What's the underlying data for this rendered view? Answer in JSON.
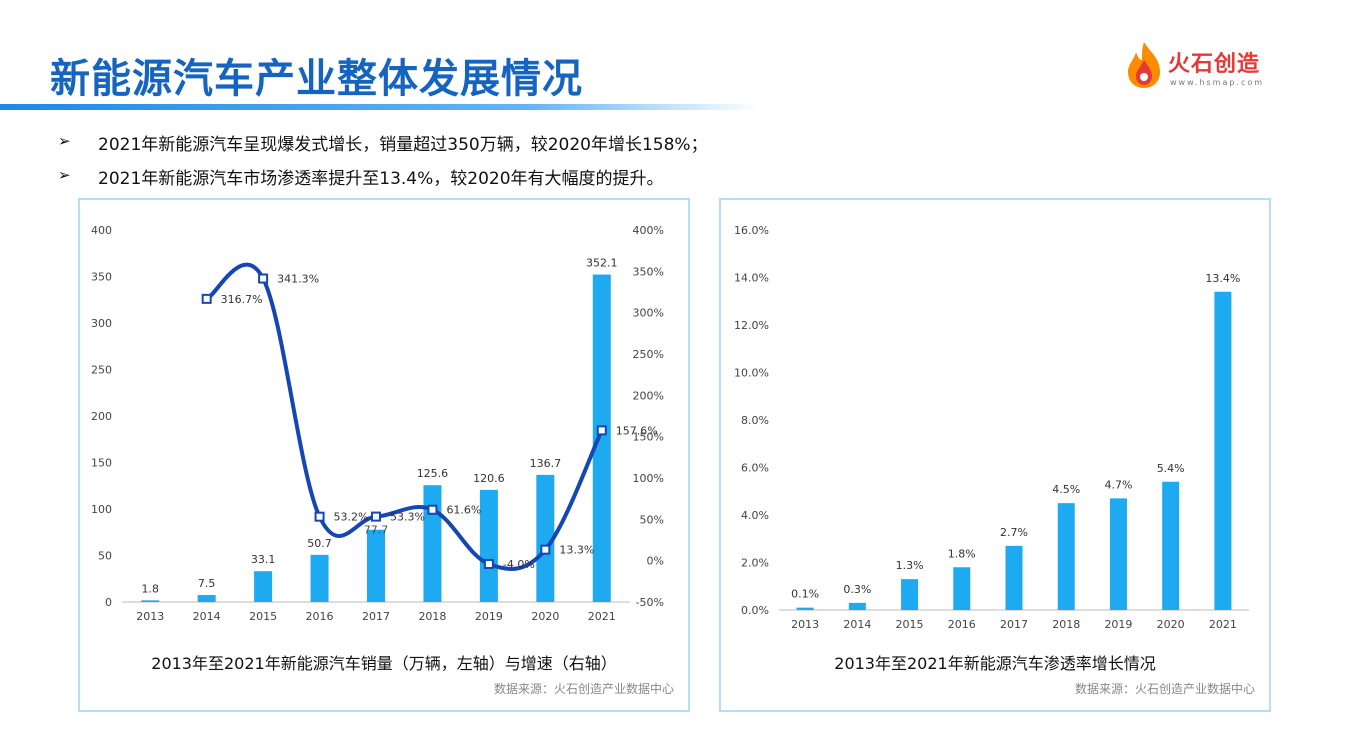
{
  "header": {
    "title": "新能源汽车产业整体发展情况",
    "logo_name": "火石创造",
    "logo_url": "www.hsmap.com"
  },
  "bullets": [
    {
      "mark": "➢",
      "text": "2021年新能源汽车呈现爆发式增长，销量超过350万辆，较2020年增长158%；"
    },
    {
      "mark": "➢",
      "text": "2021年新能源汽车市场渗透率提升至13.4%，较2020年有大幅度的提升。"
    }
  ],
  "colors": {
    "title": "#1565c0",
    "bar": "#1eaaf1",
    "line": "#1446b4",
    "panel_border": "#b3e0f7",
    "logo_red": "#e53935",
    "logo_orange": "#fb8c00"
  },
  "chart_data": [
    {
      "type": "bar",
      "caption": "2013年至2021年新能源汽车销量（万辆，左轴）与增速（右轴）",
      "source": "数据来源：火石创造产业数据中心",
      "categories": [
        "2013",
        "2014",
        "2015",
        "2016",
        "2017",
        "2018",
        "2019",
        "2020",
        "2021"
      ],
      "ylim": [
        0,
        400
      ],
      "yticks": [
        0,
        50,
        100,
        150,
        200,
        250,
        300,
        350,
        400
      ],
      "ytick_labels": [
        "0",
        "50",
        "100",
        "150",
        "200",
        "250",
        "300",
        "350",
        "400"
      ],
      "y2lim": [
        -50,
        400
      ],
      "y2ticks": [
        -50,
        0,
        50,
        100,
        150,
        200,
        250,
        300,
        350,
        400
      ],
      "y2tick_labels": [
        "-50%",
        "0%",
        "50%",
        "100%",
        "150%",
        "200%",
        "250%",
        "300%",
        "350%",
        "400%"
      ],
      "series": [
        {
          "kind": "bar",
          "axis": "left",
          "values": [
            1.8,
            7.5,
            33.1,
            50.7,
            77.7,
            125.6,
            120.6,
            136.7,
            352.1
          ],
          "labels": [
            "1.8",
            "7.5",
            "33.1",
            "50.7",
            "",
            "125.6",
            "120.6",
            "136.7",
            "352.1"
          ]
        },
        {
          "kind": "line",
          "axis": "right",
          "smooth": true,
          "marker": "square",
          "x": [
            "2014",
            "2015",
            "2016",
            "2017",
            "2018",
            "2019",
            "2020",
            "2021"
          ],
          "values": [
            316.7,
            341.3,
            53.2,
            53.3,
            61.6,
            -4.0,
            13.3,
            157.6
          ],
          "labels": [
            "316.7%",
            "341.3%",
            "53.2%",
            "53.3%",
            "61.6%",
            "-4.0%",
            "13.3%",
            "157.6%"
          ]
        }
      ],
      "overlap_label": "77.7"
    },
    {
      "type": "bar",
      "caption": "2013年至2021年新能源汽车渗透率增长情况",
      "source": "数据来源：火石创造产业数据中心",
      "categories": [
        "2013",
        "2014",
        "2015",
        "2016",
        "2017",
        "2018",
        "2019",
        "2020",
        "2021"
      ],
      "ylim": [
        0,
        16
      ],
      "yticks": [
        0,
        2,
        4,
        6,
        8,
        10,
        12,
        14,
        16
      ],
      "ytick_labels": [
        "0.0%",
        "2.0%",
        "4.0%",
        "6.0%",
        "8.0%",
        "10.0%",
        "12.0%",
        "14.0%",
        "16.0%"
      ],
      "values": [
        0.1,
        0.3,
        1.3,
        1.8,
        2.7,
        4.5,
        4.7,
        5.4,
        13.4
      ],
      "labels": [
        "0.1%",
        "0.3%",
        "1.3%",
        "1.8%",
        "2.7%",
        "4.5%",
        "4.7%",
        "5.4%",
        "13.4%"
      ]
    }
  ]
}
